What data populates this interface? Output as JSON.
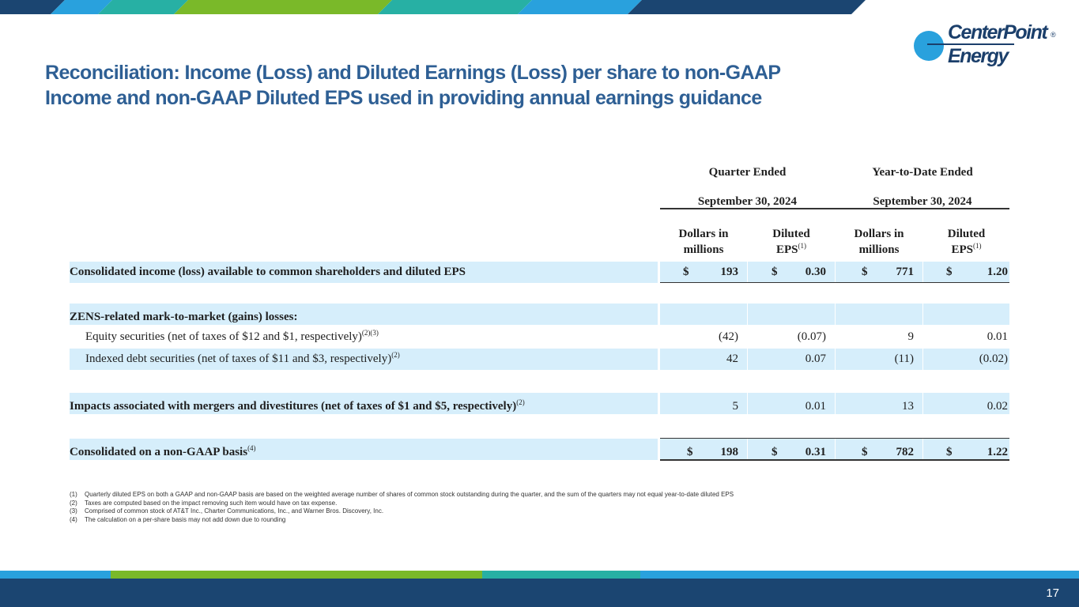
{
  "title": {
    "line1": "Reconciliation: Income (Loss) and Diluted Earnings (Loss) per share to non-GAAP",
    "line2": "Income and non-GAAP Diluted EPS used in providing annual earnings guidance"
  },
  "logo": {
    "line1": "CenterPoint",
    "line2": "Energy",
    "reg": "®"
  },
  "colors": {
    "title": "#2e5f94",
    "shade": "#d6eefb",
    "navy": "#1b4571",
    "blue": "#29a1dd",
    "green": "#7ab929",
    "teal": "#27b0a4"
  },
  "table": {
    "headers": {
      "quarter_ended": "Quarter Ended",
      "ytd_ended": "Year-to-Date Ended",
      "quarter_date": "September 30, 2024",
      "ytd_date": "September 30, 2024",
      "dollars_l1": "Dollars in",
      "dollars_l2": "millions",
      "eps_l1": "Diluted",
      "eps_l2": "EPS",
      "eps_sup": "(1)"
    },
    "currency": "$",
    "rows": {
      "consolidated": {
        "label": "Consolidated income (loss) available to common shareholders and diluted EPS",
        "q_dollars": "193",
        "q_eps": "0.30",
        "y_dollars": "771",
        "y_eps": "1.20"
      },
      "zens": {
        "label": "ZENS-related mark-to-market (gains) losses:"
      },
      "equity": {
        "label": "Equity securities (net of taxes of $12 and $1, respectively)",
        "sup": "(2)(3)",
        "q_dollars": "(42)",
        "q_eps": "(0.07)",
        "y_dollars": "9",
        "y_eps": "0.01"
      },
      "indexed": {
        "label": "Indexed debt securities (net of taxes of $11 and $3, respectively)",
        "sup": "(2)",
        "q_dollars": "42",
        "q_eps": "0.07",
        "y_dollars": "(11)",
        "y_eps": "(0.02)"
      },
      "mergers": {
        "label": "Impacts associated with mergers and divestitures (net of taxes of $1 and $5, respectively)",
        "sup": "(2)",
        "q_dollars": "5",
        "q_eps": "0.01",
        "y_dollars": "13",
        "y_eps": "0.02"
      },
      "nongaap": {
        "label": "Consolidated on a non-GAAP basis",
        "sup": "(4)",
        "q_dollars": "198",
        "q_eps": "0.31",
        "y_dollars": "782",
        "y_eps": "1.22"
      }
    }
  },
  "footnotes": [
    {
      "num": "(1)",
      "text": "Quarterly diluted EPS on both a GAAP and non-GAAP basis are based on the weighted average number of shares of common stock outstanding during the quarter, and the sum of the quarters may not equal year-to-date diluted EPS"
    },
    {
      "num": "(2)",
      "text": "Taxes are computed based on the impact removing such item would have on tax expense."
    },
    {
      "num": "(3)",
      "text": "Comprised of common stock of AT&T Inc., Charter Communications, Inc., and Warner Bros. Discovery, Inc."
    },
    {
      "num": "(4)",
      "text": "The calculation on a per-share basis may not add down due to rounding"
    }
  ],
  "page_number": "17"
}
